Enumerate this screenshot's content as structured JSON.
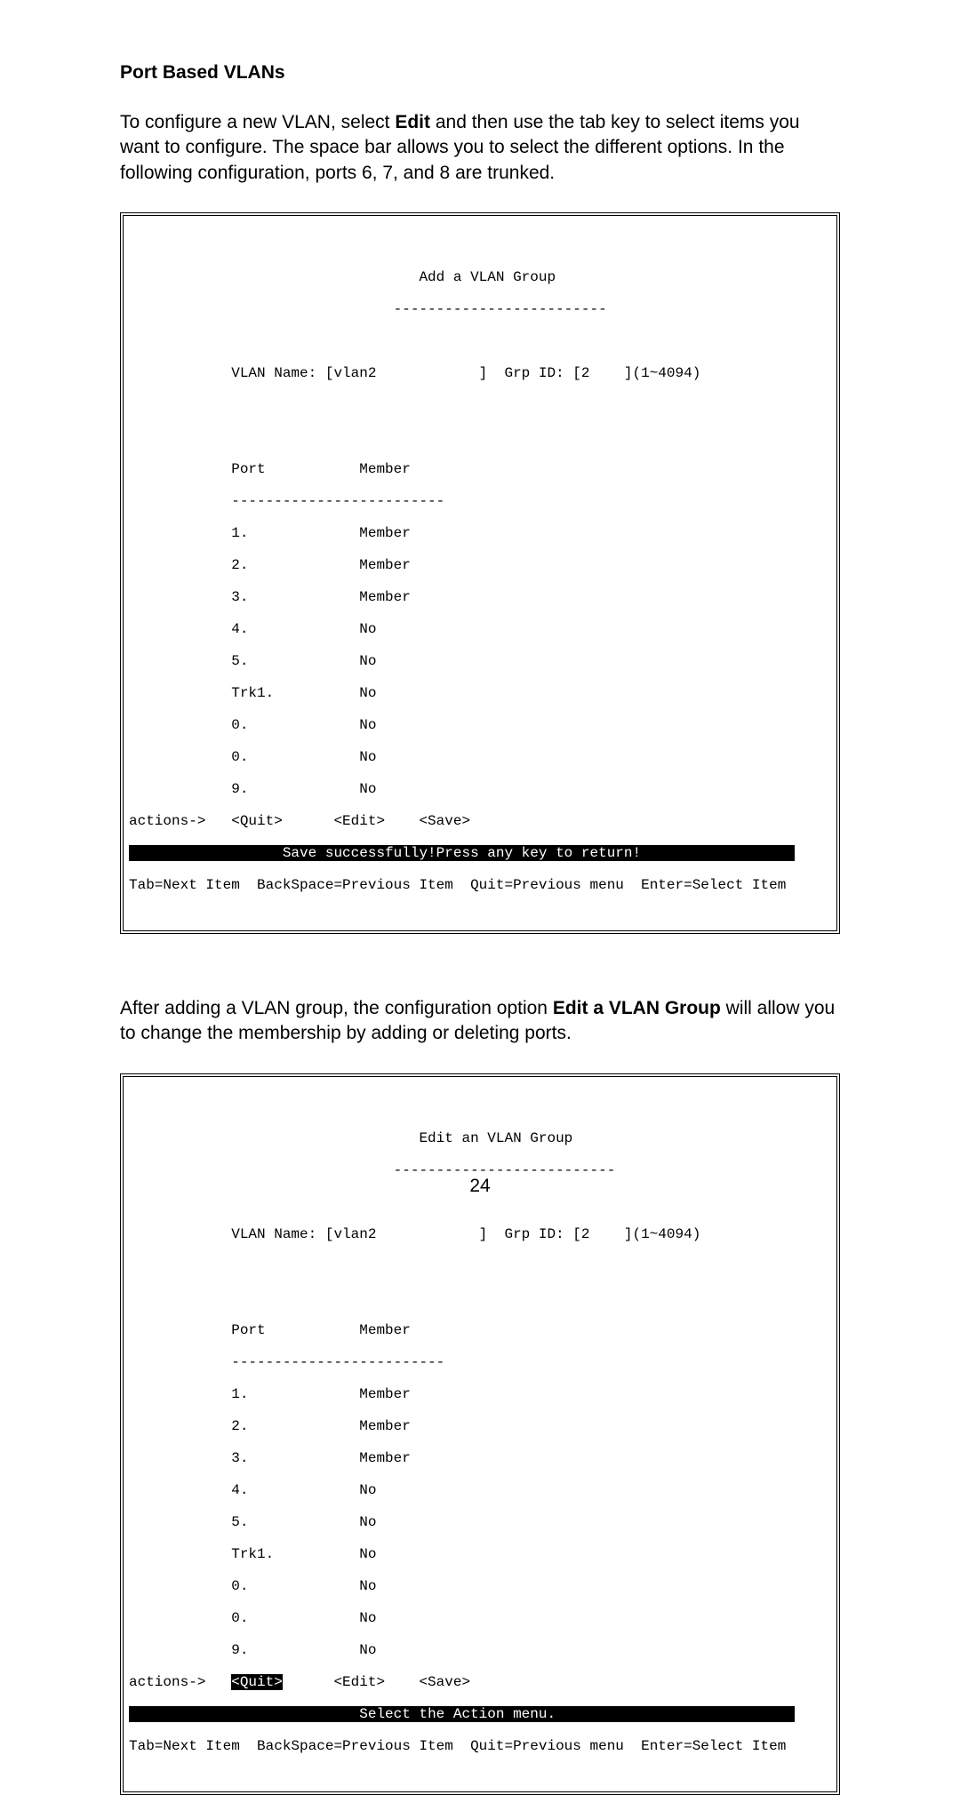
{
  "heading": "Port Based VLANs",
  "para1_pre": "To configure a new VLAN, select ",
  "para1_bold": "Edit",
  "para1_post": " and then use the tab key to select items you want to configure.  The space bar allows you to select the different options. In the following configuration, ports 6, 7, and 8 are trunked.",
  "para2_pre": "After adding a VLAN group, the configuration option ",
  "para2_bold": "Edit a VLAN Group",
  "para2_post": " will allow you to change the membership by adding or deleting ports.",
  "page_number": "24",
  "term1": {
    "title_line": "                                  Add a VLAN Group",
    "title_rule": "                               -------------------------",
    "vlan_line": "            VLAN Name: [vlan2            ]  Grp ID: [2    ](1~4094)",
    "hdr_line": "            Port           Member",
    "hdr_rule": "            -------------------------",
    "r1": "            1.             Member",
    "r2": "            2.             Member",
    "r3": "            3.             Member",
    "r4": "            4.             No",
    "r5": "            5.             No",
    "r6": "            Trk1.          No",
    "r7": "            0.             No",
    "r8": "            0.             No",
    "r9": "            9.             No",
    "actions": "actions->   <Quit>      <Edit>    <Save>",
    "status_pad_l": "                  ",
    "status_msg": "Save successfully!Press any key to return!",
    "status_pad_r": "                  ",
    "help": "Tab=Next Item  BackSpace=Previous Item  Quit=Previous menu  Enter=Select Item"
  },
  "term2": {
    "title_line": "                                  Edit an VLAN Group",
    "title_rule": "                               --------------------------",
    "vlan_line": "            VLAN Name: [vlan2            ]  Grp ID: [2    ](1~4094)",
    "hdr_line": "            Port           Member",
    "hdr_rule": "            -------------------------",
    "r1": "            1.             Member",
    "r2": "            2.             Member",
    "r3": "            3.             Member",
    "r4": "            4.             No",
    "r5": "            5.             No",
    "r6": "            Trk1.          No",
    "r7": "            0.             No",
    "r8": "            0.             No",
    "r9": "            9.             No",
    "actions_pre": "actions->   ",
    "actions_sel": "<Quit>",
    "actions_post": "      <Edit>    <Save>",
    "status_pad_l": "                           ",
    "status_msg": "Select the Action menu.",
    "status_pad_r": "                            ",
    "help": "Tab=Next Item  BackSpace=Previous Item  Quit=Previous menu  Enter=Select Item"
  }
}
